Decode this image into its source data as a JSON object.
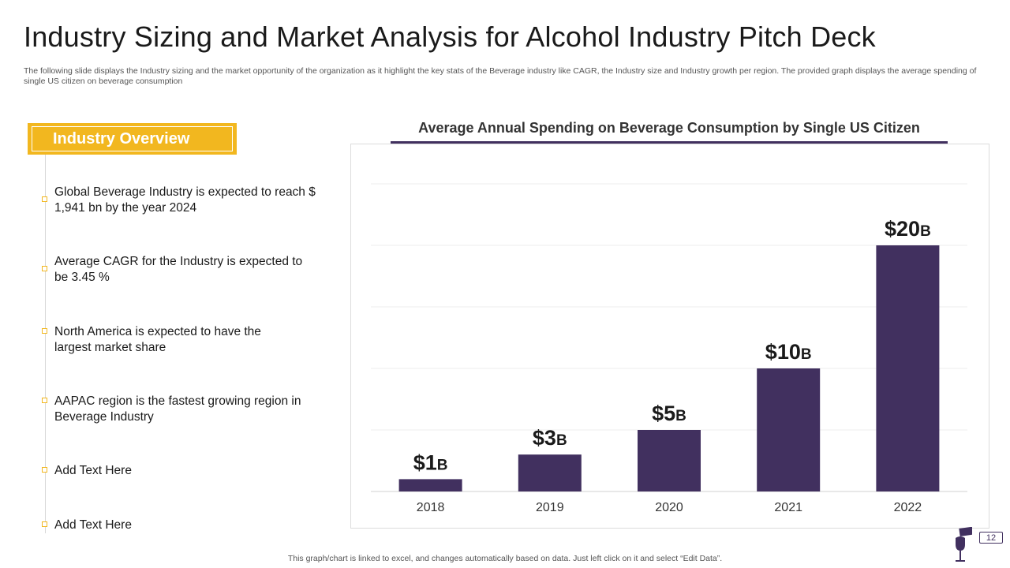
{
  "header": {
    "title": "Industry Sizing and Market Analysis for Alcohol Industry Pitch Deck",
    "subtitle": "The following slide displays the Industry sizing and the market opportunity of the organization as it highlight the key stats of the Beverage industry like CAGR,  the Industry size and Industry growth per region. The provided graph displays the average spending of single US citizen on beverage consumption"
  },
  "overview": {
    "heading": "Industry Overview",
    "items": [
      "Global Beverage Industry  is expected to reach $ 1,941 bn by the year 2024",
      "Average CAGR for the Industry  is expected to be 3.45 %",
      "North America is expected to have the largest market share",
      "AAPAC region is the fastest growing region in Beverage Industry",
      "Add Text Here",
      "Add Text Here"
    ]
  },
  "chart_data": {
    "type": "bar",
    "title": "Average Annual Spending on Beverage Consumption by  Single US Citizen",
    "categories": [
      "2018",
      "2019",
      "2020",
      "2021",
      "2022"
    ],
    "values": [
      1,
      3,
      5,
      10,
      20
    ],
    "data_labels": [
      {
        "main": "$1",
        "suffix": "B"
      },
      {
        "main": "$3",
        "suffix": "B"
      },
      {
        "main": "$5",
        "suffix": "B"
      },
      {
        "main": "$10",
        "suffix": "B"
      },
      {
        "main": "$20",
        "suffix": "B"
      }
    ],
    "xlabel": "",
    "ylabel": "",
    "ylim": [
      0,
      25
    ],
    "gridlines": true,
    "bar_color": "#41305f"
  },
  "footer": {
    "note": "This graph/chart is linked to excel,  and changes automatically based on data. Just left click on it and select “Edit Data”.",
    "page_number": "12"
  },
  "colors": {
    "accent": "#f2b71f",
    "brand": "#41305f"
  }
}
